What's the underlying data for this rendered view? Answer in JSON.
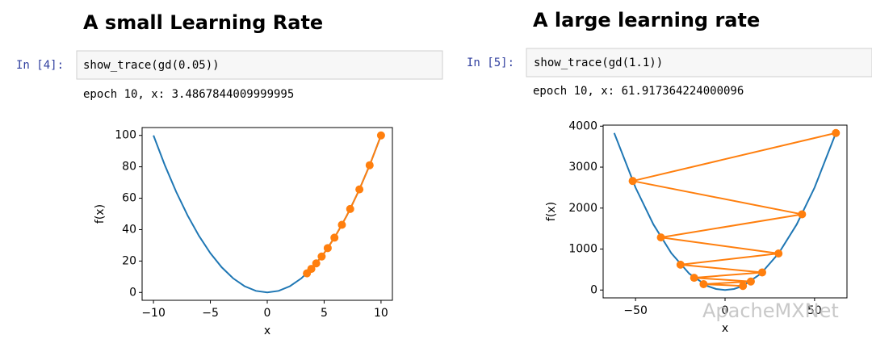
{
  "cells": [
    {
      "heading": "A small Learning Rate",
      "prompt": "In [4]:",
      "code": "show_trace(gd(0.05))",
      "output": "epoch 10, x: 3.4867844009999995"
    },
    {
      "heading": "A large learning rate",
      "prompt": "In [5]:",
      "code": "show_trace(gd(1.1))",
      "output": "epoch 10, x: 61.917364224000096"
    }
  ],
  "watermark": "ApacheMXNet",
  "chart_data": [
    {
      "type": "line",
      "xlabel": "x",
      "ylabel": "f(x)",
      "xlim": [
        -11,
        11
      ],
      "ylim": [
        -5,
        105
      ],
      "xticks": [
        {
          "value": -10,
          "label": "−10"
        },
        {
          "value": -5,
          "label": "−5"
        },
        0,
        5,
        10
      ],
      "yticks": [
        0,
        20,
        40,
        60,
        80,
        100
      ],
      "series": [
        {
          "color": "#1f77b4",
          "x": [
            -10,
            -9,
            -8,
            -7,
            -6,
            -5,
            -4,
            -3,
            -2,
            -1,
            0,
            1,
            2,
            3,
            4,
            5,
            6,
            7,
            8,
            9,
            10
          ],
          "values": [
            100,
            81,
            64,
            49,
            36,
            25,
            16,
            9,
            4,
            1,
            0,
            1,
            4,
            9,
            16,
            25,
            36,
            49,
            64,
            81,
            100
          ]
        },
        {
          "color": "#ff7f0e",
          "marker": "o",
          "x": [
            10,
            9,
            8.1,
            7.29,
            6.561,
            5.9049,
            5.31441,
            4.78297,
            4.30467,
            3.8742,
            3.48678
          ],
          "values": [
            100,
            81,
            65.61,
            53.14,
            43.05,
            34.87,
            28.24,
            22.88,
            18.53,
            15.01,
            12.16
          ]
        }
      ]
    },
    {
      "type": "line",
      "xlabel": "x",
      "ylabel": "f(x)",
      "xlim": [
        -68.1,
        68.1
      ],
      "ylim": [
        -191.7,
        4025.4
      ],
      "xticks": [
        {
          "value": -50,
          "label": "−50"
        },
        0,
        50
      ],
      "yticks": [
        0,
        1000,
        2000,
        3000,
        4000
      ],
      "series": [
        {
          "color": "#1f77b4",
          "x": [
            -61.917,
            -50,
            -40,
            -30,
            -20,
            -10,
            -5,
            0,
            5,
            10,
            20,
            30,
            40,
            50,
            61.917
          ],
          "values": [
            3833.76,
            2500,
            1600,
            900,
            400,
            100,
            25,
            0,
            25,
            100,
            400,
            900,
            1600,
            2500,
            3833.76
          ]
        },
        {
          "color": "#ff7f0e",
          "marker": "o",
          "x": [
            10,
            -12,
            14.4,
            -17.28,
            20.736,
            -24.883,
            29.86,
            -35.832,
            42.998,
            -51.598,
            61.917
          ],
          "values": [
            100,
            144,
            207.36,
            298.6,
            429.98,
            619.17,
            891.61,
            1283.92,
            1848.85,
            2662.35,
            3833.76
          ]
        }
      ]
    }
  ]
}
